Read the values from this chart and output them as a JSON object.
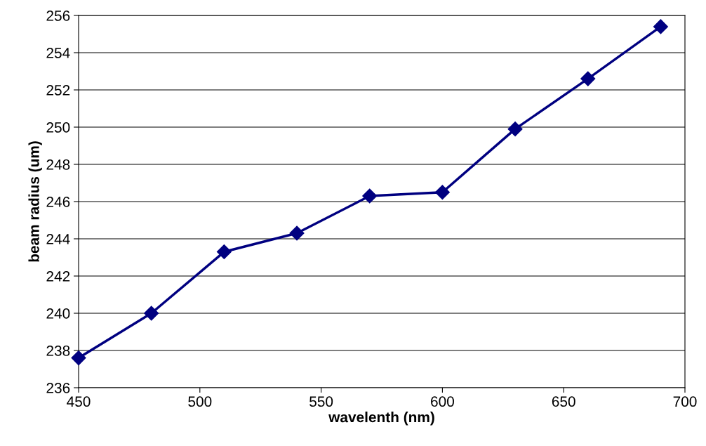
{
  "chart_data": {
    "type": "line",
    "xlabel": "wavelenth (nm)",
    "ylabel": "beam radius (um)",
    "x": [
      450,
      480,
      510,
      540,
      570,
      600,
      630,
      660,
      690
    ],
    "series": [
      {
        "color": "#000080",
        "values": [
          237.6,
          240.0,
          243.3,
          244.3,
          246.3,
          246.5,
          249.9,
          252.6,
          255.4
        ]
      }
    ],
    "xlim": [
      450,
      700
    ],
    "xticks": [
      450,
      500,
      550,
      600,
      650,
      700
    ],
    "ylim": [
      236,
      256
    ],
    "yticks": [
      236,
      238,
      240,
      242,
      244,
      246,
      248,
      250,
      252,
      254,
      256
    ],
    "grid": "y",
    "marker": "diamond",
    "line_style": "solid"
  }
}
